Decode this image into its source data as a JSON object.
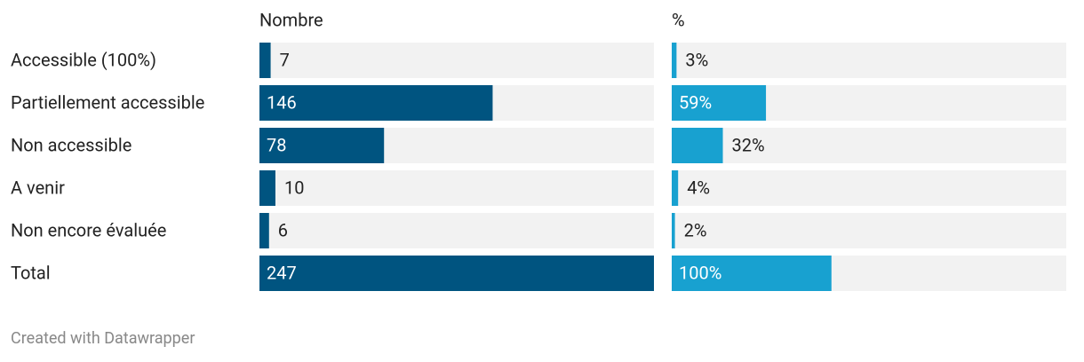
{
  "chart_data": [
    {
      "type": "bar",
      "title": "Nombre",
      "categories": [
        "Accessible (100%)",
        "Partiellement accessible",
        "Non accessible",
        "A venir",
        "Non encore évaluée",
        "Total"
      ],
      "values": [
        7,
        146,
        78,
        10,
        6,
        247
      ],
      "color": "#005480",
      "xlim": [
        0,
        247
      ]
    },
    {
      "type": "bar",
      "title": "%",
      "values": [
        3,
        59,
        32,
        4,
        2,
        100
      ],
      "value_labels": [
        "3%",
        "59%",
        "32%",
        "4%",
        "2%",
        "100%"
      ],
      "color": "#18a1d0",
      "xlim": [
        0,
        247
      ]
    }
  ],
  "footer": "Created with Datawrapper"
}
